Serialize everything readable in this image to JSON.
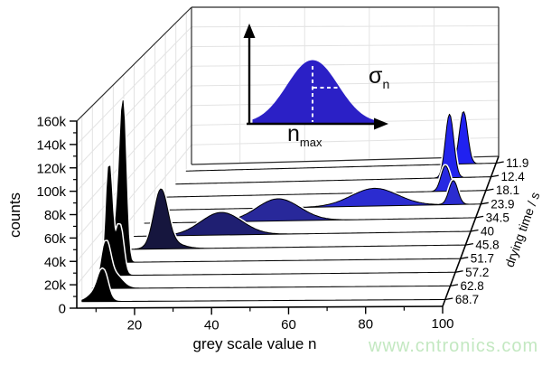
{
  "axes": {
    "y": {
      "title": "counts",
      "tick_labels": [
        "0",
        "20k",
        "40k",
        "60k",
        "80k",
        "100k",
        "120k",
        "140k",
        "160k"
      ],
      "max_counts": 160000
    },
    "x": {
      "title": "grey scale value n",
      "tick_values": [
        20,
        40,
        60,
        80,
        100
      ],
      "minor_tick_values": [
        10,
        30,
        50,
        70,
        90
      ],
      "min": 5,
      "max": 100
    },
    "depth": {
      "title": "drying time / s",
      "tick_labels": [
        "11.9",
        "12.4",
        "18.1",
        "23.9",
        "34.5",
        "40",
        "45.8",
        "51.7",
        "57.2",
        "62.8",
        "68.7"
      ]
    }
  },
  "inset": {
    "sigma_symbol": "σ",
    "sigma_subscript": "n",
    "peak_symbol": "n",
    "peak_subscript": "max",
    "fill_color": "#2b20c6"
  },
  "watermark": {
    "text": "www.cntronics.com",
    "color": "#c3e8c1"
  },
  "chart_data": {
    "type": "area",
    "variant": "3d-waterfall-of-grey-value-histograms",
    "xlabel": "grey scale value n",
    "ylabel": "counts",
    "zlabel": "drying time / s",
    "x_range": [
      5,
      100
    ],
    "y_range": [
      0,
      160000
    ],
    "grid": true,
    "series": [
      {
        "drying_time_s": 11.9,
        "color": "#2021f0",
        "components": [
          {
            "n_max": 90,
            "sigma_n": 1.25,
            "peak_counts": 53000
          }
        ]
      },
      {
        "drying_time_s": 12.4,
        "color": "#2224ec",
        "components": [
          {
            "n_max": 87.5,
            "sigma_n": 1.25,
            "peak_counts": 63000
          }
        ]
      },
      {
        "drying_time_s": 18.1,
        "color": "#2728e2",
        "components": [
          {
            "n_max": 88,
            "sigma_n": 1.3,
            "peak_counts": 25000
          }
        ]
      },
      {
        "drying_time_s": 23.9,
        "color": "#2b2cd0",
        "components": [
          {
            "n_max": 69,
            "sigma_n": 6.8,
            "peak_counts": 17000
          },
          {
            "n_max": 92,
            "sigma_n": 1.3,
            "peak_counts": 23000
          }
        ]
      },
      {
        "drying_time_s": 34.5,
        "color": "#28289a",
        "components": [
          {
            "n_max": 43.3,
            "sigma_n": 6.2,
            "peak_counts": 21000
          }
        ]
      },
      {
        "drying_time_s": 40,
        "color": "#1f1f72",
        "components": [
          {
            "n_max": 29.6,
            "sigma_n": 5.8,
            "peak_counts": 21000
          }
        ]
      },
      {
        "drying_time_s": 45.8,
        "color": "#16163e",
        "components": [
          {
            "n_max": 15.3,
            "sigma_n": 1.9,
            "peak_counts": 50000
          },
          {
            "n_max": 17.5,
            "sigma_n": 3.5,
            "peak_counts": 6000
          }
        ]
      },
      {
        "drying_time_s": 51.7,
        "color": "#000000",
        "components": [
          {
            "n_max": 7.7,
            "sigma_n": 0.8,
            "peak_counts": 135000
          },
          {
            "n_max": 6.2,
            "sigma_n": 0.9,
            "peak_counts": 40000
          }
        ]
      },
      {
        "drying_time_s": 57.2,
        "color": "#000000",
        "components": [
          {
            "n_max": 6.7,
            "sigma_n": 0.8,
            "peak_counts": 98000
          },
          {
            "n_max": 9.4,
            "sigma_n": 1.0,
            "peak_counts": 45000
          }
        ]
      },
      {
        "drying_time_s": 62.8,
        "color": "#000000",
        "components": [
          {
            "n_max": 8.5,
            "sigma_n": 1.1,
            "peak_counts": 35000
          },
          {
            "n_max": 10.8,
            "sigma_n": 2.0,
            "peak_counts": 12000
          }
        ]
      },
      {
        "drying_time_s": 68.7,
        "color": "#000000",
        "components": [
          {
            "n_max": 10.5,
            "sigma_n": 1.2,
            "peak_counts": 22000
          },
          {
            "n_max": 8.8,
            "sigma_n": 2.0,
            "peak_counts": 8000
          }
        ]
      }
    ]
  }
}
